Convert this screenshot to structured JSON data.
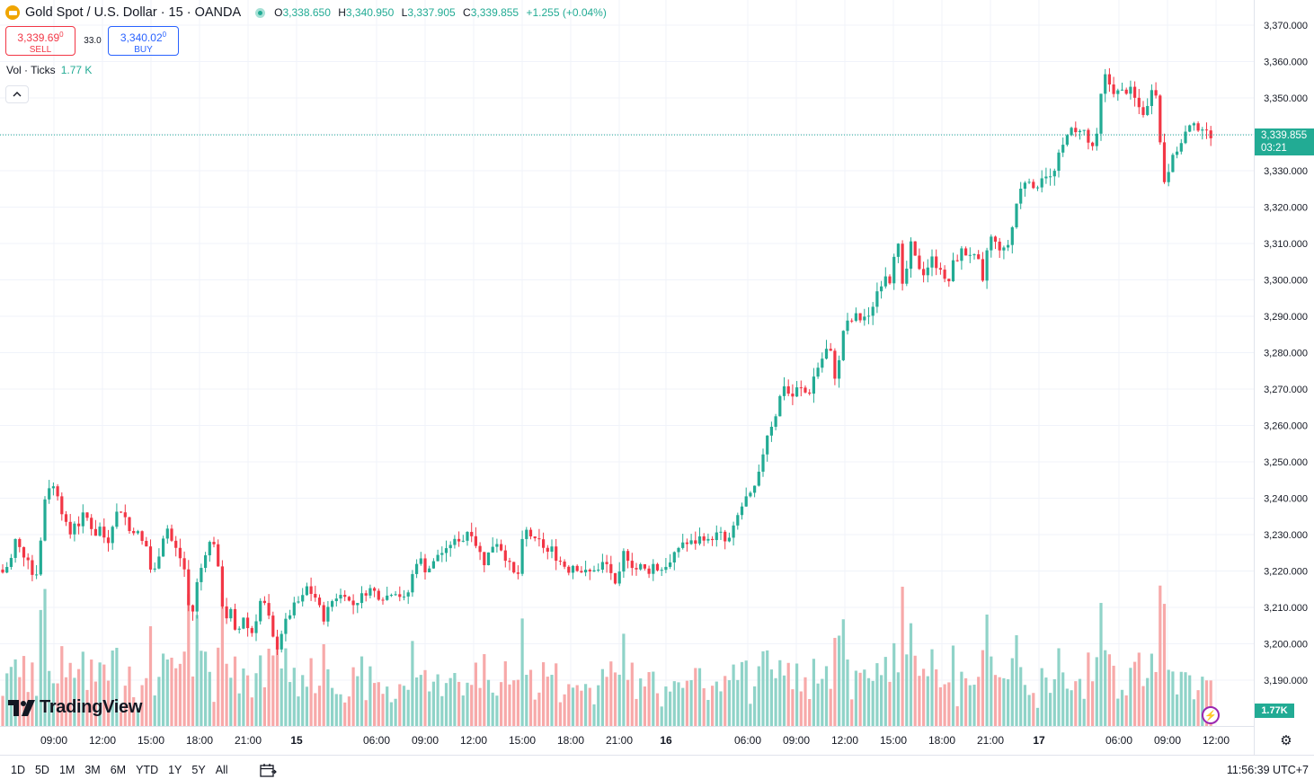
{
  "header": {
    "title": "Gold Spot / U.S. Dollar · 15 · OANDA",
    "open_label": "O",
    "open": "3,338.650",
    "high_label": "H",
    "high": "3,340.950",
    "low_label": "L",
    "low": "3,337.905",
    "close_label": "C",
    "close": "3,339.855",
    "change": "+1.255 (+0.04%)"
  },
  "trade": {
    "sell_price": "3,339.69",
    "sell_sup": "0",
    "sell_label": "SELL",
    "spread": "33.0",
    "buy_price": "3,340.02",
    "buy_sup": "0",
    "buy_label": "BUY"
  },
  "volume_legend": {
    "label": "Vol · Ticks",
    "value": "1.77 K"
  },
  "collapse_icon": "chevron-up-icon",
  "price_tag": {
    "price": "3,339.855",
    "countdown": "03:21"
  },
  "volume_tag": "1.77K",
  "watermark": "TradingView",
  "timeframes": [
    "1D",
    "5D",
    "1M",
    "3M",
    "6M",
    "YTD",
    "1Y",
    "5Y",
    "All"
  ],
  "clock": "11:56:39 UTC+7",
  "colors": {
    "up": "#22ab94",
    "down": "#f23645",
    "vol_up": "#8fd3c8",
    "vol_down": "#f7a9a9",
    "grid": "#f0f3fa"
  },
  "chart_data": {
    "type": "candlestick",
    "title": "Gold Spot / U.S. Dollar · 15 · OANDA",
    "y_axis_ticks": [
      "3,370.000",
      "3,360.000",
      "3,350.000",
      "3,340.000",
      "3,330.000",
      "3,320.000",
      "3,310.000",
      "3,300.000",
      "3,290.000",
      "3,280.000",
      "3,270.000",
      "3,260.000",
      "3,250.000",
      "3,240.000",
      "3,230.000",
      "3,220.000",
      "3,210.000",
      "3,200.000",
      "3,190.000"
    ],
    "x_axis_ticks": [
      "09:00",
      "12:00",
      "15:00",
      "18:00",
      "21:00",
      "15",
      "06:00",
      "09:00",
      "12:00",
      "15:00",
      "18:00",
      "21:00",
      "16",
      "06:00",
      "09:00",
      "12:00",
      "15:00",
      "18:00",
      "21:00",
      "17",
      "06:00",
      "09:00",
      "12:00"
    ],
    "ylim": [
      3180,
      3372
    ],
    "last_price": 3339.855,
    "price_path": [
      [
        0,
        3222
      ],
      [
        5,
        3218
      ],
      [
        10,
        3224
      ],
      [
        14,
        3223
      ],
      [
        18,
        3230
      ],
      [
        24,
        3224
      ],
      [
        30,
        3225
      ],
      [
        36,
        3219
      ],
      [
        42,
        3220
      ],
      [
        46,
        3230
      ],
      [
        50,
        3240
      ],
      [
        53,
        3244
      ],
      [
        58,
        3242
      ],
      [
        62,
        3245
      ],
      [
        66,
        3238
      ],
      [
        70,
        3236
      ],
      [
        74,
        3232
      ],
      [
        78,
        3230
      ],
      [
        82,
        3234
      ],
      [
        86,
        3232
      ],
      [
        90,
        3234
      ],
      [
        94,
        3236
      ],
      [
        98,
        3234
      ],
      [
        102,
        3232
      ],
      [
        106,
        3230
      ],
      [
        110,
        3232
      ],
      [
        114,
        3232
      ],
      [
        118,
        3226
      ],
      [
        122,
        3230
      ],
      [
        126,
        3234
      ],
      [
        130,
        3236
      ],
      [
        134,
        3237
      ],
      [
        138,
        3236
      ],
      [
        142,
        3232
      ],
      [
        146,
        3230
      ],
      [
        150,
        3232
      ],
      [
        154,
        3230
      ],
      [
        158,
        3228
      ],
      [
        162,
        3228
      ],
      [
        166,
        3222
      ],
      [
        170,
        3218
      ],
      [
        174,
        3222
      ],
      [
        178,
        3226
      ],
      [
        182,
        3230
      ],
      [
        186,
        3232
      ],
      [
        190,
        3229
      ],
      [
        194,
        3226
      ],
      [
        198,
        3226
      ],
      [
        202,
        3222
      ],
      [
        206,
        3220
      ],
      [
        210,
        3210
      ],
      [
        214,
        3208
      ],
      [
        218,
        3216
      ],
      [
        222,
        3218
      ],
      [
        226,
        3224
      ],
      [
        230,
        3226
      ],
      [
        234,
        3228
      ],
      [
        238,
        3228
      ],
      [
        242,
        3222
      ],
      [
        246,
        3212
      ],
      [
        250,
        3209
      ],
      [
        254,
        3206
      ],
      [
        258,
        3210
      ],
      [
        262,
        3202
      ],
      [
        266,
        3204
      ],
      [
        270,
        3208
      ],
      [
        274,
        3206
      ],
      [
        278,
        3202
      ],
      [
        282,
        3204
      ],
      [
        286,
        3208
      ],
      [
        290,
        3212
      ],
      [
        294,
        3211
      ],
      [
        298,
        3208
      ],
      [
        302,
        3204
      ],
      [
        306,
        3198
      ],
      [
        310,
        3200
      ],
      [
        314,
        3204
      ],
      [
        318,
        3206
      ],
      [
        322,
        3208
      ],
      [
        326,
        3210
      ],
      [
        330,
        3211
      ],
      [
        334,
        3212
      ],
      [
        338,
        3213
      ],
      [
        342,
        3216
      ],
      [
        346,
        3214
      ],
      [
        350,
        3213
      ],
      [
        354,
        3212
      ],
      [
        358,
        3206
      ],
      [
        362,
        3208
      ],
      [
        366,
        3210
      ],
      [
        370,
        3212
      ],
      [
        374,
        3213
      ],
      [
        378,
        3213
      ],
      [
        382,
        3214
      ],
      [
        386,
        3214
      ],
      [
        390,
        3210
      ],
      [
        394,
        3211
      ],
      [
        398,
        3212
      ],
      [
        402,
        3213
      ],
      [
        406,
        3214
      ],
      [
        410,
        3215
      ],
      [
        414,
        3215
      ],
      [
        418,
        3214
      ],
      [
        422,
        3213
      ],
      [
        426,
        3213
      ],
      [
        430,
        3213
      ],
      [
        434,
        3214
      ],
      [
        438,
        3215
      ],
      [
        442,
        3214
      ],
      [
        446,
        3213
      ],
      [
        450,
        3212
      ],
      [
        454,
        3214
      ],
      [
        458,
        3218
      ],
      [
        462,
        3222
      ],
      [
        466,
        3224
      ],
      [
        470,
        3222
      ],
      [
        474,
        3220
      ],
      [
        478,
        3221
      ],
      [
        482,
        3222
      ],
      [
        486,
        3224
      ],
      [
        490,
        3226
      ],
      [
        494,
        3224
      ],
      [
        498,
        3226
      ],
      [
        502,
        3228
      ],
      [
        506,
        3228
      ],
      [
        510,
        3229
      ],
      [
        514,
        3228
      ],
      [
        518,
        3230
      ],
      [
        522,
        3232
      ],
      [
        526,
        3230
      ],
      [
        530,
        3227
      ],
      [
        534,
        3225
      ],
      [
        538,
        3222
      ],
      [
        542,
        3224
      ],
      [
        546,
        3226
      ],
      [
        550,
        3228
      ],
      [
        554,
        3228
      ],
      [
        558,
        3226
      ],
      [
        562,
        3224
      ],
      [
        566,
        3222
      ],
      [
        570,
        3220
      ],
      [
        574,
        3218
      ],
      [
        578,
        3220
      ],
      [
        582,
        3230
      ],
      [
        586,
        3231
      ],
      [
        590,
        3230
      ],
      [
        594,
        3228
      ],
      [
        598,
        3228
      ],
      [
        602,
        3228
      ],
      [
        606,
        3226
      ],
      [
        610,
        3225
      ],
      [
        614,
        3226
      ],
      [
        618,
        3224
      ],
      [
        622,
        3223
      ],
      [
        626,
        3222
      ],
      [
        630,
        3221
      ],
      [
        634,
        3220
      ],
      [
        638,
        3222
      ],
      [
        642,
        3221
      ],
      [
        646,
        3220
      ],
      [
        650,
        3220
      ],
      [
        654,
        3219
      ],
      [
        658,
        3220
      ],
      [
        662,
        3221
      ],
      [
        666,
        3220
      ],
      [
        670,
        3222
      ],
      [
        674,
        3222
      ],
      [
        678,
        3221
      ],
      [
        682,
        3218
      ],
      [
        686,
        3214
      ],
      [
        690,
        3220
      ],
      [
        694,
        3225
      ],
      [
        698,
        3224
      ],
      [
        702,
        3222
      ],
      [
        706,
        3221
      ],
      [
        710,
        3220
      ],
      [
        714,
        3222
      ],
      [
        718,
        3220
      ],
      [
        722,
        3220
      ],
      [
        726,
        3222
      ],
      [
        730,
        3221
      ],
      [
        734,
        3220
      ],
      [
        738,
        3221
      ],
      [
        742,
        3222
      ],
      [
        746,
        3222
      ],
      [
        750,
        3224
      ],
      [
        754,
        3226
      ],
      [
        758,
        3228
      ],
      [
        762,
        3228
      ],
      [
        766,
        3227
      ],
      [
        770,
        3228
      ],
      [
        774,
        3228
      ],
      [
        778,
        3229
      ],
      [
        782,
        3230
      ],
      [
        786,
        3228
      ],
      [
        790,
        3228
      ],
      [
        794,
        3230
      ],
      [
        798,
        3230
      ],
      [
        802,
        3230
      ],
      [
        806,
        3228
      ],
      [
        810,
        3228
      ],
      [
        814,
        3230
      ],
      [
        818,
        3233
      ],
      [
        822,
        3236
      ],
      [
        826,
        3238
      ],
      [
        830,
        3240
      ],
      [
        834,
        3240
      ],
      [
        838,
        3242
      ],
      [
        842,
        3244
      ],
      [
        846,
        3248
      ],
      [
        850,
        3254
      ],
      [
        854,
        3258
      ],
      [
        858,
        3260
      ],
      [
        862,
        3262
      ],
      [
        866,
        3266
      ],
      [
        870,
        3270
      ],
      [
        874,
        3272
      ],
      [
        878,
        3268
      ],
      [
        882,
        3268
      ],
      [
        886,
        3270
      ],
      [
        890,
        3270
      ],
      [
        894,
        3270
      ],
      [
        898,
        3268
      ],
      [
        902,
        3270
      ],
      [
        906,
        3274
      ],
      [
        910,
        3276
      ],
      [
        914,
        3278
      ],
      [
        918,
        3280
      ],
      [
        922,
        3282
      ],
      [
        926,
        3278
      ],
      [
        930,
        3272
      ],
      [
        934,
        3278
      ],
      [
        938,
        3286
      ],
      [
        942,
        3288
      ],
      [
        946,
        3288
      ],
      [
        950,
        3290
      ],
      [
        954,
        3290
      ],
      [
        958,
        3289
      ],
      [
        962,
        3290
      ],
      [
        966,
        3289
      ],
      [
        970,
        3292
      ],
      [
        974,
        3296
      ],
      [
        978,
        3298
      ],
      [
        982,
        3300
      ],
      [
        986,
        3302
      ],
      [
        990,
        3300
      ],
      [
        994,
        3306
      ],
      [
        998,
        3314
      ],
      [
        1002,
        3300
      ],
      [
        1006,
        3296
      ],
      [
        1010,
        3306
      ],
      [
        1014,
        3310
      ],
      [
        1018,
        3306
      ],
      [
        1022,
        3304
      ],
      [
        1026,
        3302
      ],
      [
        1030,
        3302
      ],
      [
        1034,
        3305
      ],
      [
        1038,
        3306
      ],
      [
        1042,
        3304
      ],
      [
        1046,
        3304
      ],
      [
        1050,
        3300
      ],
      [
        1054,
        3298
      ],
      [
        1058,
        3302
      ],
      [
        1062,
        3306
      ],
      [
        1066,
        3306
      ],
      [
        1070,
        3308
      ],
      [
        1074,
        3307
      ],
      [
        1078,
        3308
      ],
      [
        1082,
        3306
      ],
      [
        1086,
        3306
      ],
      [
        1090,
        3304
      ],
      [
        1094,
        3298
      ],
      [
        1098,
        3308
      ],
      [
        1102,
        3312
      ],
      [
        1106,
        3310
      ],
      [
        1110,
        3310
      ],
      [
        1114,
        3308
      ],
      [
        1118,
        3308
      ],
      [
        1122,
        3310
      ],
      [
        1126,
        3314
      ],
      [
        1130,
        3320
      ],
      [
        1134,
        3324
      ],
      [
        1138,
        3326
      ],
      [
        1142,
        3328
      ],
      [
        1146,
        3328
      ],
      [
        1150,
        3324
      ],
      [
        1154,
        3326
      ],
      [
        1158,
        3328
      ],
      [
        1162,
        3330
      ],
      [
        1166,
        3328
      ],
      [
        1170,
        3328
      ],
      [
        1174,
        3330
      ],
      [
        1178,
        3334
      ],
      [
        1182,
        3336
      ],
      [
        1186,
        3340
      ],
      [
        1190,
        3342
      ],
      [
        1194,
        3340
      ],
      [
        1198,
        3340
      ],
      [
        1202,
        3342
      ],
      [
        1206,
        3341
      ],
      [
        1210,
        3338
      ],
      [
        1214,
        3336
      ],
      [
        1218,
        3338
      ],
      [
        1222,
        3340
      ],
      [
        1226,
        3354
      ],
      [
        1230,
        3356
      ],
      [
        1234,
        3354
      ],
      [
        1238,
        3352
      ],
      [
        1242,
        3352
      ],
      [
        1246,
        3351
      ],
      [
        1250,
        3352
      ],
      [
        1254,
        3352
      ],
      [
        1258,
        3352
      ],
      [
        1262,
        3350
      ],
      [
        1266,
        3348
      ],
      [
        1270,
        3346
      ],
      [
        1274,
        3346
      ],
      [
        1278,
        3348
      ],
      [
        1282,
        3354
      ],
      [
        1286,
        3352
      ],
      [
        1290,
        3340
      ],
      [
        1294,
        3328
      ],
      [
        1298,
        3326
      ],
      [
        1302,
        3334
      ],
      [
        1306,
        3336
      ],
      [
        1310,
        3334
      ],
      [
        1314,
        3338
      ],
      [
        1318,
        3340
      ],
      [
        1322,
        3342
      ],
      [
        1326,
        3342
      ],
      [
        1330,
        3342
      ],
      [
        1334,
        3342
      ],
      [
        1338,
        3342
      ],
      [
        1342,
        3340
      ],
      [
        1346,
        3340
      ],
      [
        1350,
        3339.855
      ]
    ],
    "volume_profile": "tick volume bars below candles, peaks near session opens"
  }
}
